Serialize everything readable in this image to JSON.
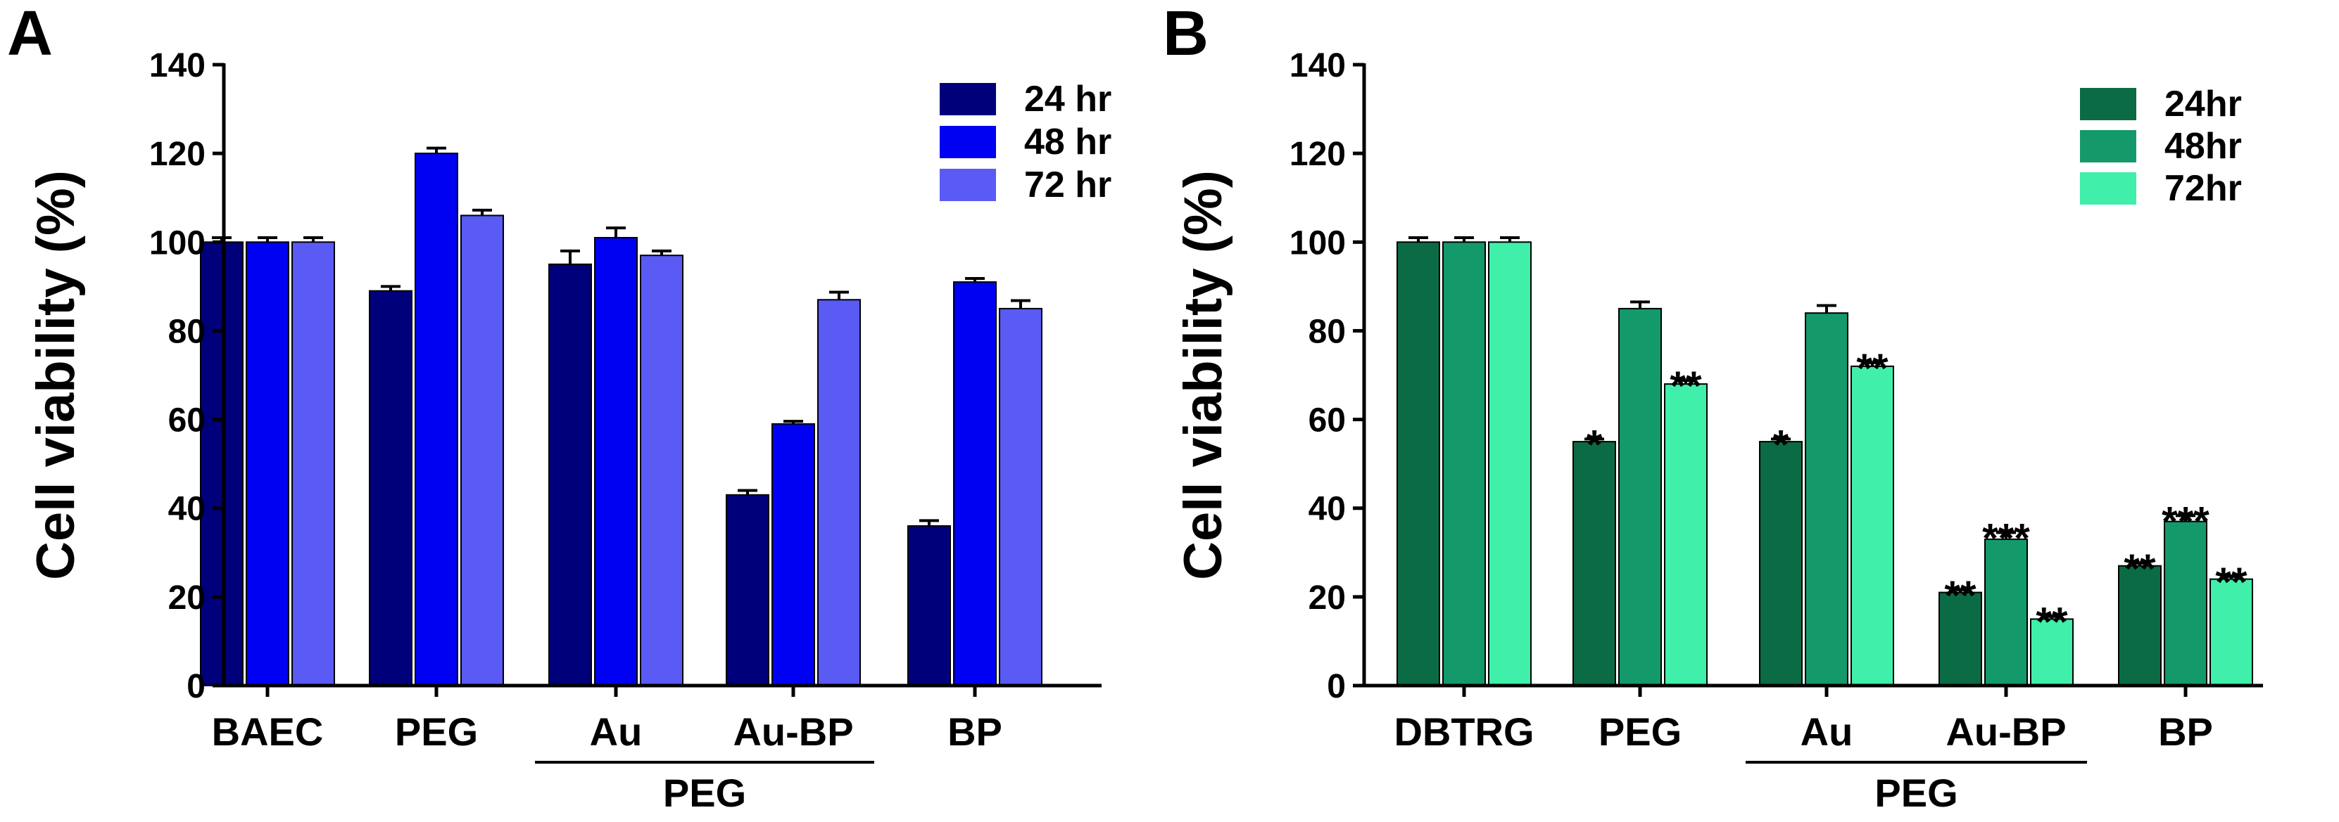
{
  "chart_data": [
    {
      "type": "bar",
      "panel_label": "A",
      "ylabel": "Cell viability (%)",
      "ylim": [
        0,
        140
      ],
      "yticks": [
        0,
        20,
        40,
        60,
        80,
        100,
        120,
        140
      ],
      "categories": [
        "BAEC",
        "PEG",
        "Au",
        "Au-BP",
        "BP"
      ],
      "group_label": "PEG",
      "group_members": [
        "Au",
        "Au-BP"
      ],
      "legend_position": "top-right",
      "series": [
        {
          "name": "24 hr",
          "color": "#00007a",
          "values": [
            100,
            89,
            95,
            43,
            36
          ],
          "errors": [
            1,
            1,
            3,
            1,
            1.2
          ],
          "annotations": [
            "",
            "",
            "",
            "",
            ""
          ]
        },
        {
          "name": "48 hr",
          "color": "#0000f2",
          "values": [
            100,
            120,
            101,
            59,
            91
          ],
          "errors": [
            1,
            1.2,
            2.2,
            0.6,
            0.8
          ],
          "annotations": [
            "",
            "",
            "",
            "",
            ""
          ]
        },
        {
          "name": "72 hr",
          "color": "#5a5af5",
          "values": [
            100,
            106,
            97,
            87,
            85
          ],
          "errors": [
            1,
            1.2,
            1,
            1.7,
            1.8
          ],
          "annotations": [
            "",
            "",
            "",
            "",
            ""
          ]
        }
      ]
    },
    {
      "type": "bar",
      "panel_label": "B",
      "ylabel": "Cell viability (%)",
      "ylim": [
        0,
        140
      ],
      "yticks": [
        0,
        20,
        40,
        60,
        80,
        100,
        120,
        140
      ],
      "categories": [
        "DBTRG",
        "PEG",
        "Au",
        "Au-BP",
        "BP"
      ],
      "group_label": "PEG",
      "group_members": [
        "Au",
        "Au-BP"
      ],
      "legend_position": "top-right",
      "series": [
        {
          "name": "24hr",
          "color": "#0b6b45",
          "values": [
            100,
            55,
            55,
            21,
            27
          ],
          "errors": [
            1,
            0.6,
            0.6,
            0.6,
            0.6
          ],
          "annotations": [
            "",
            "*",
            "*",
            "**",
            "**"
          ]
        },
        {
          "name": "48hr",
          "color": "#14996a",
          "values": [
            100,
            85,
            84,
            33,
            37
          ],
          "errors": [
            1,
            1.5,
            1.7,
            1.5,
            1.3
          ],
          "annotations": [
            "",
            "",
            "",
            "***",
            "***"
          ]
        },
        {
          "name": "72hr",
          "color": "#3fefaa",
          "values": [
            100,
            68,
            72,
            15,
            24
          ],
          "errors": [
            1,
            0.8,
            0.8,
            0.6,
            0.6
          ],
          "annotations": [
            "",
            "**",
            "**",
            "**",
            "**"
          ]
        }
      ]
    }
  ]
}
